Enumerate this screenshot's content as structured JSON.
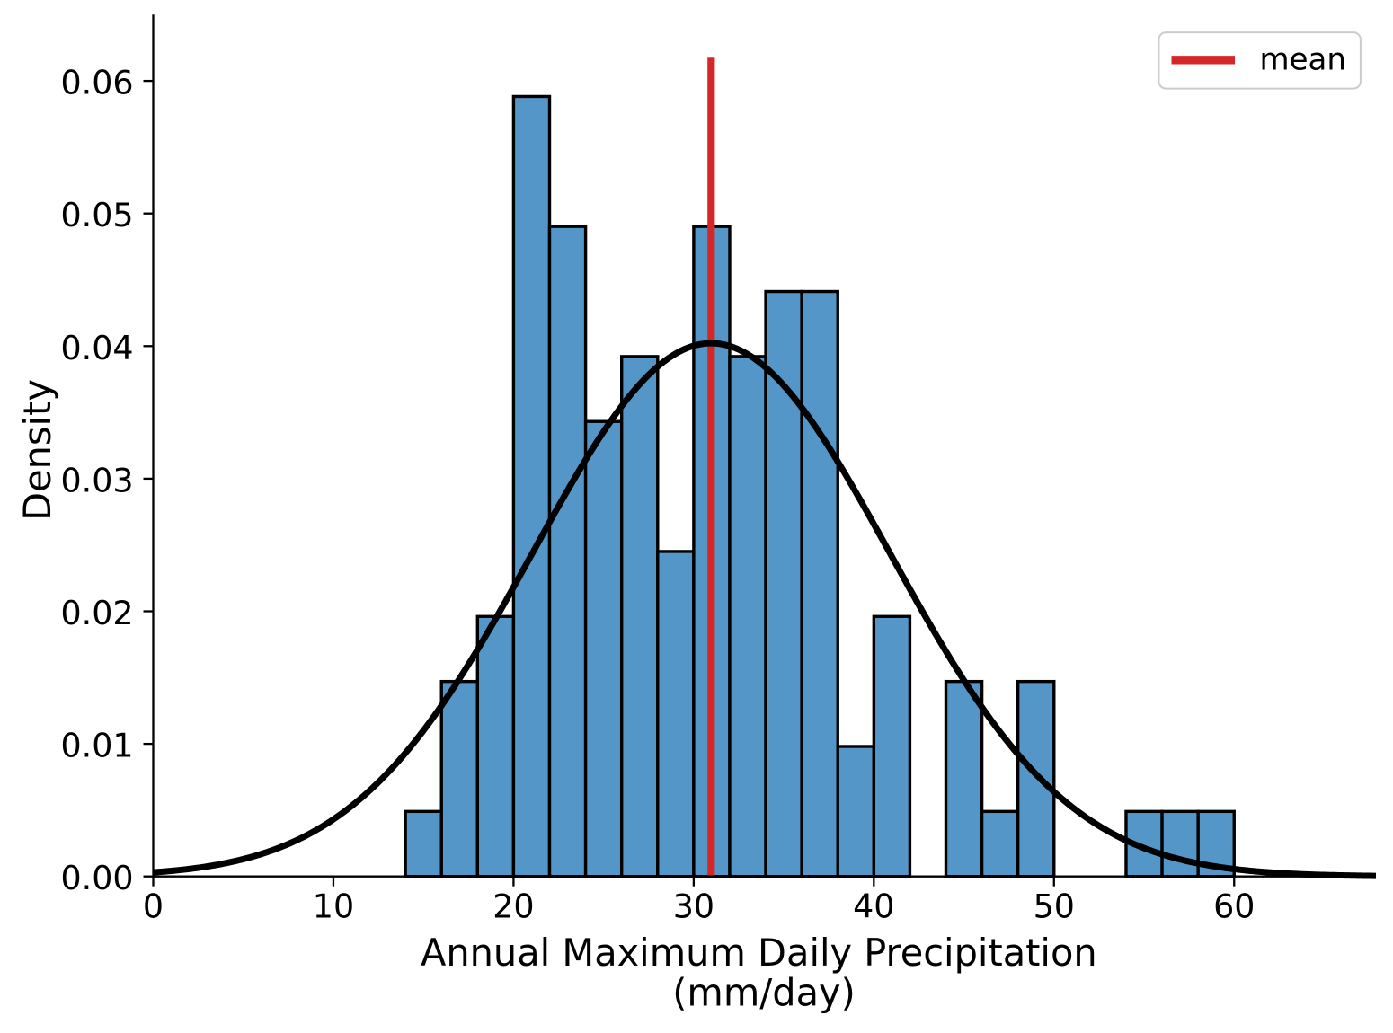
{
  "figure": {
    "background_color": "#ffffff",
    "text_color": "#000000"
  },
  "chart_data": {
    "type": "bar",
    "subtype": "histogram-with-density-curve",
    "title": "",
    "xlabel_lines": [
      "Annual Maximum Daily Precipitation",
      "(mm/day)"
    ],
    "ylabel": "Density",
    "xlim": [
      0,
      67.87
    ],
    "ylim": [
      0,
      0.065
    ],
    "xtick_values": [
      0,
      10,
      20,
      30,
      40,
      50,
      60
    ],
    "xtick_labels": [
      "0",
      "10",
      "20",
      "30",
      "40",
      "50",
      "60"
    ],
    "ytick_values": [
      0,
      0.01,
      0.02,
      0.03,
      0.04,
      0.05,
      0.06
    ],
    "ytick_labels": [
      "0.00",
      "0.01",
      "0.02",
      "0.03",
      "0.04",
      "0.05",
      "0.06"
    ],
    "grid": false,
    "legend_position": "upper right",
    "n_samples": 102,
    "bin_width": 2,
    "histogram": {
      "bin_starts": [
        14,
        16,
        18,
        20,
        22,
        24,
        26,
        28,
        30,
        32,
        34,
        36,
        38,
        40,
        42,
        44,
        46,
        48,
        50,
        52,
        54,
        56,
        58
      ],
      "counts": [
        1,
        3,
        4,
        12,
        10,
        7,
        8,
        5,
        10,
        8,
        9,
        9,
        2,
        4,
        0,
        3,
        1,
        3,
        0,
        0,
        1,
        1,
        1
      ],
      "densities": [
        0.004902,
        0.014706,
        0.019608,
        0.058824,
        0.04902,
        0.034314,
        0.039216,
        0.02451,
        0.04902,
        0.039216,
        0.044118,
        0.044118,
        0.009804,
        0.019608,
        0,
        0.014706,
        0.004902,
        0.014706,
        0,
        0,
        0.004902,
        0.004902,
        0.004902
      ],
      "fill_color": "#5596c8",
      "edge_color": "#000000"
    },
    "density_curve": {
      "distribution": "normal",
      "mean": 30.97,
      "sd": 9.92,
      "peak_density": 0.0402,
      "color": "#000000"
    },
    "mean_line": {
      "x": 30.97,
      "y_top_fraction": 0.95,
      "color": "#d62728"
    },
    "legend": {
      "entries": [
        {
          "label": "mean",
          "color": "#d62728"
        }
      ]
    }
  }
}
